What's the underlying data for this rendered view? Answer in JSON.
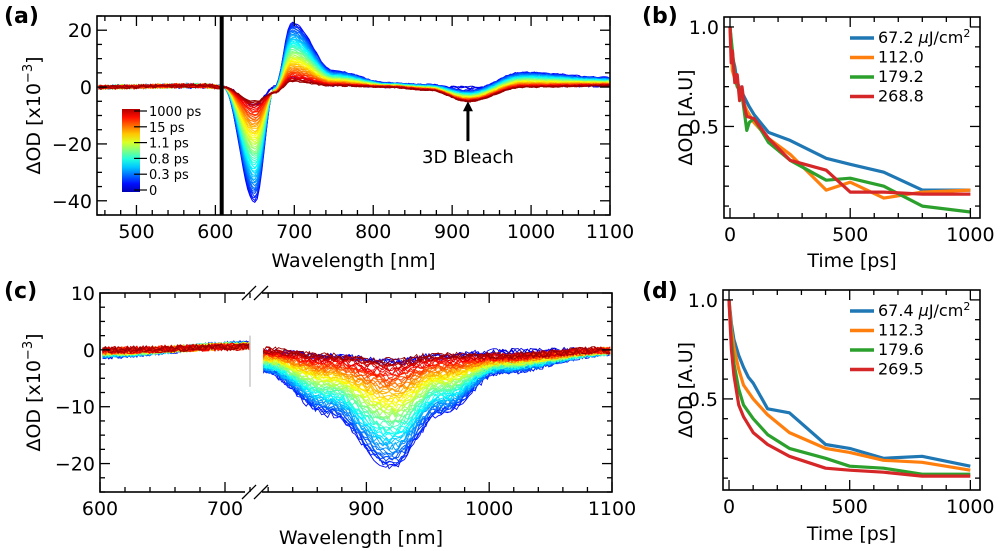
{
  "chart_data": [
    {
      "panel": "(a)",
      "type": "line",
      "xlabel": "Wavelength [nm]",
      "ylabel": "ΔOD [x10⁻³]",
      "ylabel_main": "ΔOD [x10",
      "ylabel_exp": "−3",
      "ylabel_end": "]",
      "xlim": [
        450,
        1100
      ],
      "ylim": [
        -45,
        25
      ],
      "xticks": [
        500,
        600,
        700,
        800,
        900,
        1000,
        1100
      ],
      "yticks": [
        -40,
        -20,
        0,
        20
      ],
      "ytick_labels": [
        "−40",
        "−20",
        "0",
        "20"
      ],
      "pump_line_nm": 608,
      "colorbar": {
        "labels": [
          "1000 ps",
          "15 ps",
          "1.1 ps",
          "0.8 ps",
          "0.3 ps",
          "0"
        ],
        "colormap": "jet"
      },
      "annotation": {
        "text": "3D Bleach",
        "x": 920,
        "y_tip": -5,
        "y_tail": -19
      },
      "series_description": "Transient absorption spectra at delays 0–1000 ps; bleach minimum ~650 nm (≈ -43 at early delays), photoinduced absorption peak ~697 nm (≈ +24), weak bleach ~920 nm (≈ -5), broad positive band ~1000 nm (≈ +5)",
      "spectrum_features": [
        {
          "nm": 450,
          "early": 0,
          "late": 0
        },
        {
          "nm": 580,
          "early": 1,
          "late": 0.5
        },
        {
          "nm": 610,
          "early": 0,
          "late": 0
        },
        {
          "nm": 650,
          "early": -43,
          "late": -5
        },
        {
          "nm": 675,
          "early": 0,
          "late": -2
        },
        {
          "nm": 697,
          "early": 24,
          "late": 2
        },
        {
          "nm": 750,
          "early": 6,
          "late": 0.5
        },
        {
          "nm": 820,
          "early": 1.5,
          "late": 0
        },
        {
          "nm": 870,
          "early": 1,
          "late": -1
        },
        {
          "nm": 920,
          "early": -1,
          "late": -5
        },
        {
          "nm": 990,
          "early": 5.5,
          "late": 0
        },
        {
          "nm": 1100,
          "early": 3.5,
          "late": 0.5
        }
      ]
    },
    {
      "panel": "(b)",
      "type": "line",
      "xlabel": "Time [ps]",
      "ylabel": "ΔOD [A.U]",
      "xlim": [
        -25,
        1040
      ],
      "ylim": [
        0.04,
        1.05
      ],
      "xticks": [
        0,
        500,
        1000
      ],
      "yticks": [
        0.5,
        1.0
      ],
      "ytick_labels": [
        "0.5",
        "1.0"
      ],
      "legend_location": "upper right",
      "legend_unit": "μJ/cm²",
      "series": [
        {
          "name": "67.2",
          "color": "#1f77b4",
          "x": [
            0,
            10,
            20,
            30,
            50,
            80,
            100,
            160,
            250,
            400,
            500,
            640,
            800,
            1000
          ],
          "y": [
            1.0,
            0.85,
            0.8,
            0.72,
            0.67,
            0.6,
            0.56,
            0.47,
            0.43,
            0.34,
            0.31,
            0.27,
            0.18,
            0.18
          ]
        },
        {
          "name": "112.0",
          "color": "#ff7f0e",
          "x": [
            0,
            10,
            20,
            30,
            50,
            70,
            100,
            160,
            250,
            400,
            500,
            640,
            800,
            1000
          ],
          "y": [
            1.0,
            0.78,
            0.74,
            0.72,
            0.64,
            0.58,
            0.52,
            0.44,
            0.36,
            0.18,
            0.22,
            0.14,
            0.17,
            0.18
          ]
        },
        {
          "name": "179.2",
          "color": "#2ca02c",
          "x": [
            0,
            10,
            20,
            30,
            50,
            70,
            80,
            100,
            160,
            250,
            400,
            500,
            640,
            800,
            1000
          ],
          "y": [
            1.0,
            0.88,
            0.75,
            0.7,
            0.66,
            0.48,
            0.52,
            0.54,
            0.42,
            0.33,
            0.23,
            0.24,
            0.2,
            0.1,
            0.07
          ]
        },
        {
          "name": "268.8",
          "color": "#d62728",
          "x": [
            0,
            5,
            10,
            20,
            30,
            40,
            50,
            60,
            70,
            100,
            160,
            250,
            400,
            500,
            640,
            800,
            1000
          ],
          "y": [
            1.0,
            0.82,
            0.88,
            0.72,
            0.76,
            0.63,
            0.7,
            0.6,
            0.55,
            0.54,
            0.44,
            0.33,
            0.28,
            0.17,
            0.17,
            0.16,
            0.16
          ]
        }
      ]
    },
    {
      "panel": "(c)",
      "type": "line",
      "xlabel": "Wavelength [nm]",
      "ylabel": "ΔOD [x10⁻³]",
      "ylabel_main": "ΔOD [x10",
      "ylabel_exp": "−3",
      "ylabel_end": "]",
      "broken_axis": true,
      "xlim_left": [
        600,
        720
      ],
      "xlim_right": [
        815,
        1100
      ],
      "ylim": [
        -25,
        10
      ],
      "xticks": [
        600,
        700,
        900,
        1000,
        1100
      ],
      "yticks": [
        -20,
        -10,
        0,
        10
      ],
      "ytick_labels": [
        "−20",
        "−10",
        "0",
        "10"
      ],
      "series_description": "Transient spectra (colormap jet by delay); bleach minimum ~920 nm reaching ≈ -22 at early delays, recovering toward 0 at long delays",
      "spectrum_features": [
        {
          "nm": 600,
          "early": -1,
          "late": 0
        },
        {
          "nm": 720,
          "early": 1,
          "late": 0.5
        },
        {
          "nm": 815,
          "early": -4,
          "late": 0
        },
        {
          "nm": 870,
          "early": -12,
          "late": -1
        },
        {
          "nm": 920,
          "early": -22,
          "late": -2
        },
        {
          "nm": 960,
          "early": -12,
          "late": -1
        },
        {
          "nm": 1010,
          "early": -4,
          "late": -1
        },
        {
          "nm": 1100,
          "early": -0.5,
          "late": 0
        }
      ]
    },
    {
      "panel": "(d)",
      "type": "line",
      "xlabel": "Time [ps]",
      "ylabel": "ΔOD [A.U]",
      "xlim": [
        -25,
        1040
      ],
      "ylim": [
        0.04,
        1.05
      ],
      "xticks": [
        0,
        500,
        1000
      ],
      "yticks": [
        0.5,
        1.0
      ],
      "ytick_labels": [
        "0.5",
        "1.0"
      ],
      "legend_location": "upper right",
      "legend_unit": "μJ/cm²",
      "series": [
        {
          "name": "67.4",
          "color": "#1f77b4",
          "x": [
            0,
            10,
            20,
            40,
            60,
            80,
            100,
            160,
            250,
            400,
            500,
            640,
            800,
            1000
          ],
          "y": [
            1.0,
            0.88,
            0.8,
            0.72,
            0.66,
            0.61,
            0.58,
            0.45,
            0.43,
            0.27,
            0.25,
            0.2,
            0.21,
            0.16
          ]
        },
        {
          "name": "112.3",
          "color": "#ff7f0e",
          "x": [
            0,
            10,
            20,
            40,
            60,
            100,
            160,
            250,
            400,
            500,
            640,
            800,
            1000
          ],
          "y": [
            1.0,
            0.85,
            0.76,
            0.65,
            0.57,
            0.5,
            0.42,
            0.33,
            0.25,
            0.23,
            0.19,
            0.18,
            0.14
          ]
        },
        {
          "name": "179.6",
          "color": "#2ca02c",
          "x": [
            0,
            10,
            20,
            40,
            60,
            100,
            160,
            250,
            400,
            500,
            640,
            800,
            1000
          ],
          "y": [
            1.0,
            0.8,
            0.68,
            0.55,
            0.47,
            0.4,
            0.32,
            0.25,
            0.2,
            0.16,
            0.15,
            0.12,
            0.12
          ]
        },
        {
          "name": "269.5",
          "color": "#d62728",
          "x": [
            0,
            10,
            20,
            40,
            60,
            100,
            160,
            250,
            400,
            500,
            640,
            800,
            1000
          ],
          "y": [
            1.0,
            0.75,
            0.62,
            0.47,
            0.41,
            0.33,
            0.27,
            0.21,
            0.15,
            0.14,
            0.13,
            0.11,
            0.11
          ]
        }
      ]
    }
  ],
  "legend_unit_prefix": "μJ/cm",
  "legend_unit_sup": "2"
}
